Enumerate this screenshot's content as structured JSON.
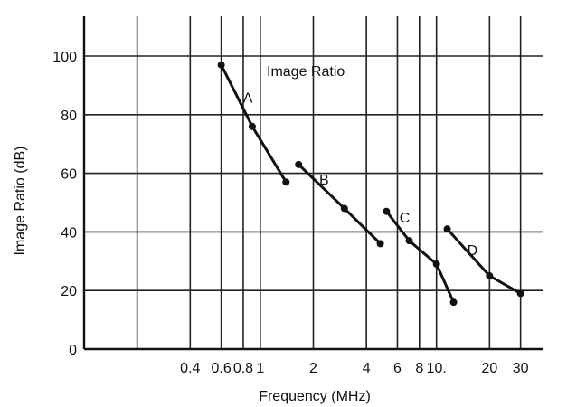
{
  "chart_data": {
    "type": "line",
    "title": "",
    "annotation": "Image Ratio",
    "xlabel": "Frequency (MHz)",
    "ylabel": "Image Ratio (dB)",
    "x_scale": "log",
    "xlim": [
      0.1,
      40
    ],
    "ylim": [
      0,
      110
    ],
    "grid": true,
    "x_grid_values": [
      0.1,
      0.2,
      0.4,
      0.6,
      0.8,
      1,
      2,
      4,
      6,
      8,
      10,
      20,
      30
    ],
    "y_ticks": [
      0,
      20,
      40,
      60,
      80,
      100
    ],
    "x_tick_labels": [
      {
        "value": 0.4,
        "label": "0.4"
      },
      {
        "value": 0.6,
        "label": "0.6"
      },
      {
        "value": 0.8,
        "label": "0.8"
      },
      {
        "value": 1,
        "label": "1"
      },
      {
        "value": 2,
        "label": "2"
      },
      {
        "value": 4,
        "label": "4"
      },
      {
        "value": 6,
        "label": "6"
      },
      {
        "value": 8,
        "label": "8"
      },
      {
        "value": 10,
        "label": "10."
      },
      {
        "value": 20,
        "label": "20"
      },
      {
        "value": 30,
        "label": "30"
      }
    ],
    "series": [
      {
        "name": "A",
        "x": [
          0.6,
          0.9,
          1.4
        ],
        "y": [
          97,
          76,
          57
        ]
      },
      {
        "name": "B",
        "x": [
          1.65,
          3.0,
          4.8
        ],
        "y": [
          63,
          48,
          36
        ]
      },
      {
        "name": "C",
        "x": [
          5.2,
          7.0,
          10.0,
          12.5
        ],
        "y": [
          47,
          37,
          29,
          16
        ]
      },
      {
        "name": "D",
        "x": [
          11.5,
          20.0,
          30.0
        ],
        "y": [
          41,
          25,
          19
        ]
      }
    ],
    "series_labels": [
      {
        "text": "A",
        "x": 0.85,
        "y": 86
      },
      {
        "text": "B",
        "x": 2.3,
        "y": 58
      },
      {
        "text": "C",
        "x": 6.6,
        "y": 45
      },
      {
        "text": "D",
        "x": 16.0,
        "y": 34
      }
    ]
  }
}
